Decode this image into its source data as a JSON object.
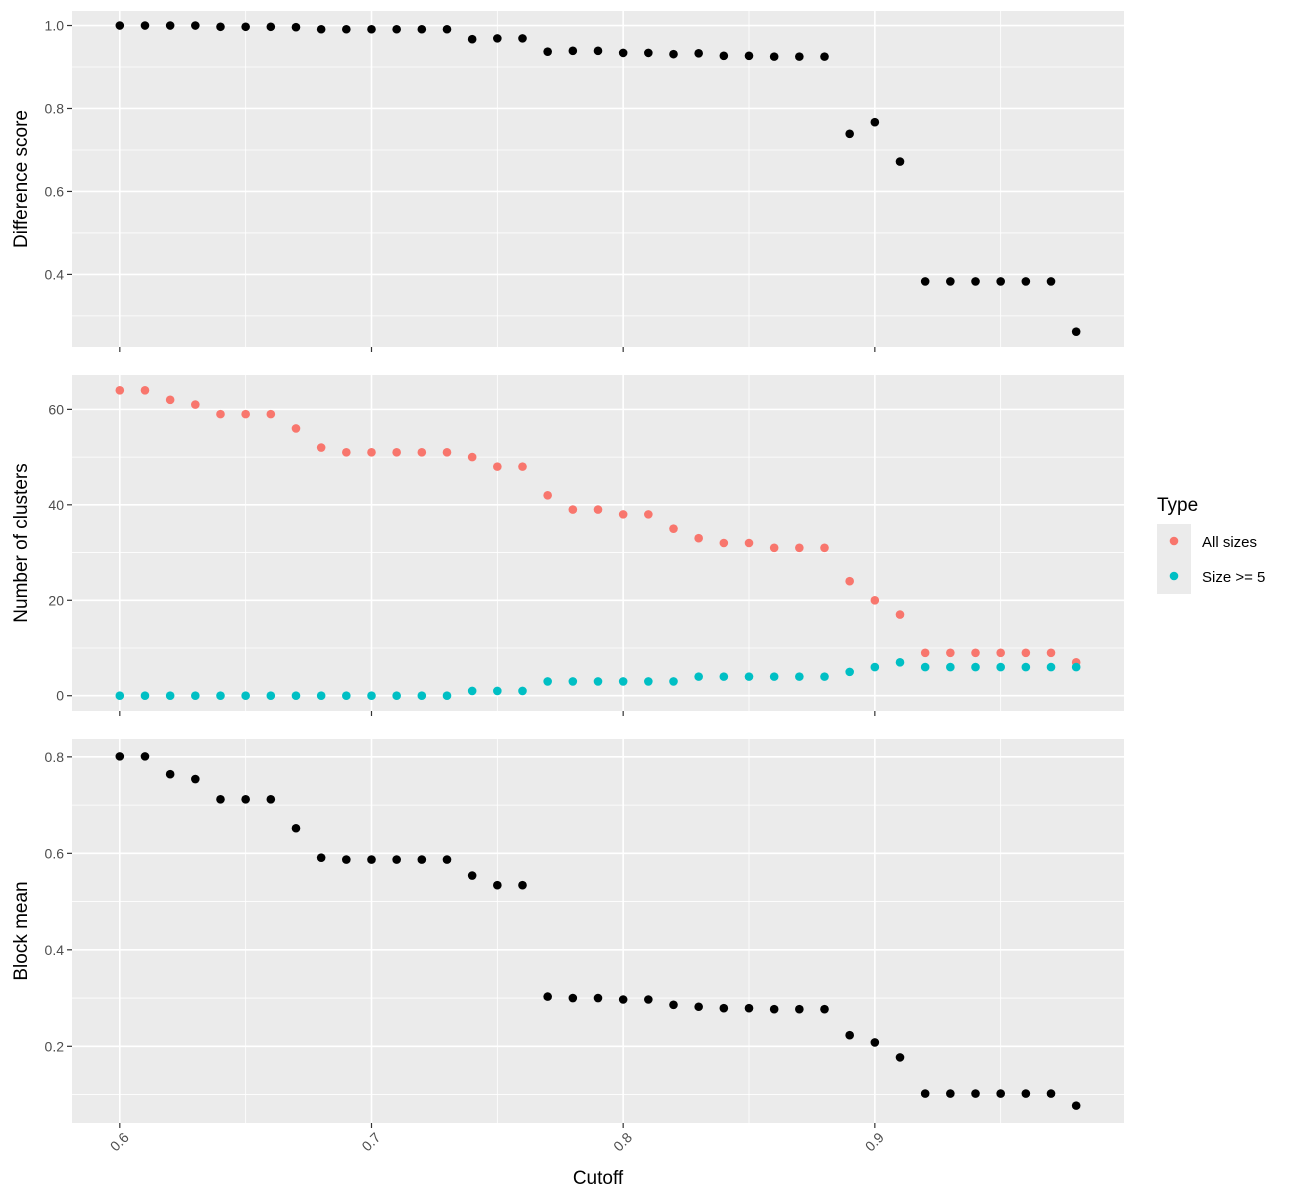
{
  "chart_data": {
    "type": "scatter",
    "xlabel": "Cutoff",
    "x_ticks": [
      0.6,
      0.7,
      0.8,
      0.9
    ],
    "x_tick_labels": [
      "0.6",
      "0.7",
      "0.8",
      "0.9"
    ],
    "xlim": [
      0.581,
      0.999
    ],
    "x": [
      0.6,
      0.61,
      0.62,
      0.63,
      0.64,
      0.65,
      0.66,
      0.67,
      0.68,
      0.69,
      0.7,
      0.71,
      0.72,
      0.73,
      0.74,
      0.75,
      0.76,
      0.77,
      0.78,
      0.79,
      0.8,
      0.81,
      0.82,
      0.83,
      0.84,
      0.85,
      0.86,
      0.87,
      0.88,
      0.89,
      0.9,
      0.91,
      0.92,
      0.93,
      0.94,
      0.95,
      0.96,
      0.97,
      0.98
    ],
    "grid": true,
    "background": "#ebebeb",
    "panels": [
      {
        "ylabel": "Difference score",
        "ylim": [
          0.225,
          1.035
        ],
        "y_ticks": [
          0.4,
          0.6,
          0.8,
          1.0
        ],
        "y_tick_labels": [
          "0.4",
          "0.6",
          "0.8",
          "1.0"
        ],
        "series": [
          {
            "color": "#000000",
            "values": [
              1.0,
              1.0,
              1.0,
              1.0,
              0.997,
              0.997,
              0.997,
              0.996,
              0.991,
              0.991,
              0.991,
              0.991,
              0.991,
              0.991,
              0.967,
              0.969,
              0.969,
              0.937,
              0.939,
              0.939,
              0.934,
              0.934,
              0.931,
              0.933,
              0.927,
              0.927,
              0.925,
              0.925,
              0.925,
              0.739,
              0.767,
              0.672,
              0.383,
              0.383,
              0.383,
              0.383,
              0.383,
              0.383,
              0.262
            ]
          }
        ]
      },
      {
        "ylabel": "Number of clusters",
        "ylim": [
          -3.2,
          67.2
        ],
        "y_ticks": [
          0,
          20,
          40,
          60
        ],
        "y_tick_labels": [
          "0",
          "20",
          "40",
          "60"
        ],
        "series": [
          {
            "name": "All sizes",
            "color": "#F8766D",
            "values": [
              64,
              64,
              62,
              61,
              59,
              59,
              59,
              56,
              52,
              51,
              51,
              51,
              51,
              51,
              50,
              48,
              48,
              42,
              39,
              39,
              38,
              38,
              35,
              33,
              32,
              32,
              31,
              31,
              31,
              24,
              20,
              17,
              9,
              9,
              9,
              9,
              9,
              9,
              7
            ]
          },
          {
            "name": "Size >= 5",
            "color": "#00BFC4",
            "values": [
              0,
              0,
              0,
              0,
              0,
              0,
              0,
              0,
              0,
              0,
              0,
              0,
              0,
              0,
              1,
              1,
              1,
              3,
              3,
              3,
              3,
              3,
              3,
              4,
              4,
              4,
              4,
              4,
              4,
              5,
              6,
              7,
              6,
              6,
              6,
              6,
              6,
              6,
              6
            ]
          }
        ]
      },
      {
        "ylabel": "Block mean",
        "ylim": [
          0.041,
          0.837
        ],
        "y_ticks": [
          0.2,
          0.4,
          0.6,
          0.8
        ],
        "y_tick_labels": [
          "0.2",
          "0.4",
          "0.6",
          "0.8"
        ],
        "series": [
          {
            "color": "#000000",
            "values": [
              0.801,
              0.801,
              0.764,
              0.754,
              0.712,
              0.712,
              0.712,
              0.652,
              0.591,
              0.587,
              0.587,
              0.587,
              0.587,
              0.587,
              0.554,
              0.534,
              0.534,
              0.303,
              0.3,
              0.3,
              0.297,
              0.297,
              0.286,
              0.282,
              0.279,
              0.279,
              0.277,
              0.277,
              0.277,
              0.223,
              0.208,
              0.177,
              0.102,
              0.102,
              0.102,
              0.102,
              0.102,
              0.102,
              0.077
            ]
          }
        ]
      }
    ],
    "legend": {
      "title": "Type",
      "position": "right",
      "entries": [
        "All sizes",
        "Size >= 5"
      ],
      "colors": [
        "#F8766D",
        "#00BFC4"
      ]
    }
  }
}
